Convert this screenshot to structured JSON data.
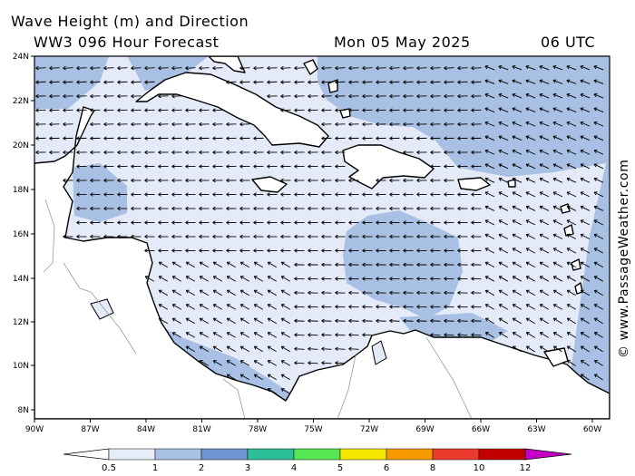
{
  "header": {
    "title_line1": "Wave Height (m) and Direction",
    "title_line2": "WW3 096 Hour Forecast",
    "date": "Mon 05 May 2025",
    "time": "06 UTC"
  },
  "credit": "© www.PassageWeather.com",
  "map": {
    "lat_labels": [
      "24N",
      "22N",
      "20N",
      "18N",
      "16N",
      "14N",
      "12N",
      "10N",
      "8N"
    ],
    "lon_labels": [
      "90W",
      "87W",
      "84W",
      "81W",
      "78W",
      "75W",
      "72W",
      "69W",
      "66W",
      "63W",
      "60W"
    ]
  },
  "legend": {
    "labels": [
      "0.5",
      "1",
      "2",
      "3",
      "4",
      "5",
      "6",
      "8",
      "10",
      "12"
    ],
    "colors": [
      "#ffffff",
      "#e6ecf8",
      "#a9c1e4",
      "#6f94cf",
      "#2dbf99",
      "#57e653",
      "#f5e800",
      "#f79a00",
      "#ec3a2e",
      "#c30000",
      "#c400c8"
    ]
  },
  "colors": {
    "land": "#ffffff",
    "wave_0_5_1": "#e4eaf7",
    "wave_1_2": "#a8c0e3",
    "coast": "#000000"
  }
}
